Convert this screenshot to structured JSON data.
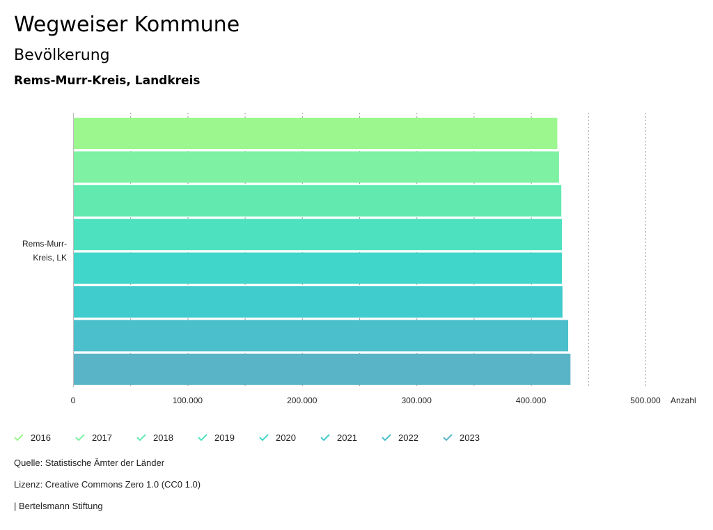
{
  "header": {
    "title": "Wegweiser Kommune",
    "subtitle": "Bevölkerung",
    "region": "Rems-Murr-Kreis, Landkreis"
  },
  "chart_data": {
    "type": "bar",
    "orientation": "horizontal",
    "categories": [
      "Rems-Murr-Kreis, LK"
    ],
    "category_label_lines": [
      "Rems-Murr-",
      "Kreis, LK"
    ],
    "series": [
      {
        "name": "2016",
        "values": [
          423000
        ],
        "color": "#9cf78f"
      },
      {
        "name": "2017",
        "values": [
          424500
        ],
        "color": "#7ef1a2"
      },
      {
        "name": "2018",
        "values": [
          426500
        ],
        "color": "#62e9b0"
      },
      {
        "name": "2019",
        "values": [
          427000
        ],
        "color": "#4ee1bf"
      },
      {
        "name": "2020",
        "values": [
          427000
        ],
        "color": "#40d6c9"
      },
      {
        "name": "2021",
        "values": [
          427500
        ],
        "color": "#40cbcc"
      },
      {
        "name": "2022",
        "values": [
          432500
        ],
        "color": "#4bbfcb"
      },
      {
        "name": "2023",
        "values": [
          434500
        ],
        "color": "#5ab4c8"
      }
    ],
    "xlim": [
      0,
      500000
    ],
    "x_ticks": [
      0,
      100000,
      200000,
      300000,
      400000,
      500000
    ],
    "x_tick_labels": [
      "0",
      "100.000",
      "200.000",
      "300.000",
      "400.000",
      "500.000"
    ],
    "xlabel": "Anzahl",
    "grid": true,
    "legend": "bottom"
  },
  "footer": {
    "source": "Quelle: Statistische Ämter der Länder",
    "license": "Lizenz: Creative Commons Zero 1.0 (CC0 1.0)",
    "credit": "| Bertelsmann Stiftung"
  }
}
